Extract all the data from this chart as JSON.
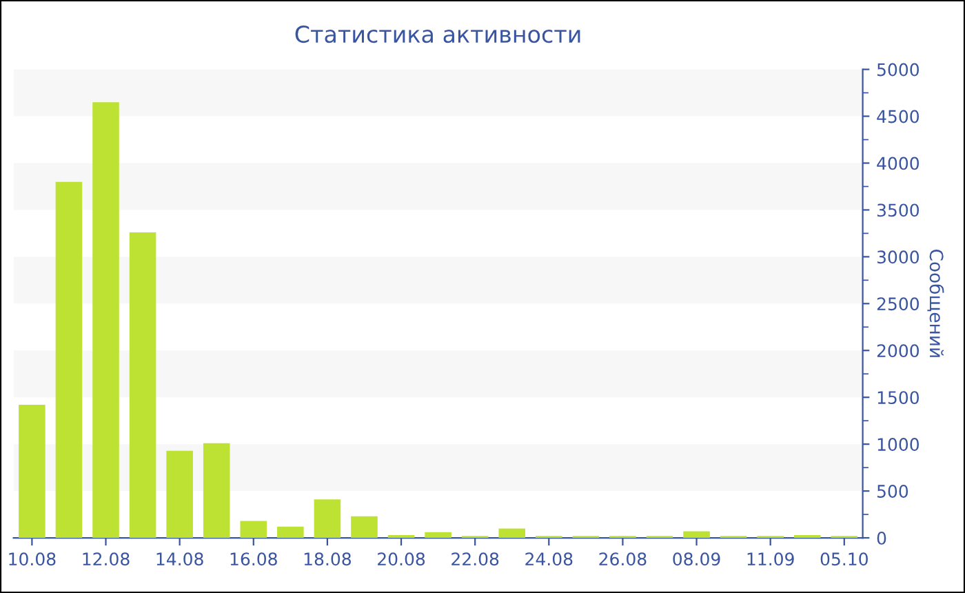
{
  "chart_data": {
    "type": "bar",
    "title": "Статистика активности",
    "ylabel": "Сообщений",
    "categories": [
      "10.08",
      null,
      "12.08",
      null,
      "14.08",
      null,
      "16.08",
      null,
      "18.08",
      null,
      "20.08",
      null,
      "22.08",
      null,
      "24.08",
      null,
      "26.08",
      null,
      "08.09",
      null,
      "11.09",
      null,
      "05.10"
    ],
    "values": [
      1420,
      3800,
      4650,
      3260,
      930,
      1010,
      180,
      120,
      410,
      230,
      30,
      60,
      20,
      100,
      20,
      20,
      20,
      20,
      70,
      20,
      20,
      30,
      20
    ],
    "color": "#bde233",
    "ylim": [
      0,
      5000
    ],
    "yticks": [
      0,
      500,
      1000,
      1500,
      2000,
      2500,
      3000,
      3500,
      4000,
      4500,
      5000
    ],
    "bands": [
      {
        "axis": "y",
        "from": 500,
        "to": 1000,
        "color": "#f7f7f7"
      },
      {
        "axis": "y",
        "from": 1500,
        "to": 2000,
        "color": "#f7f7f7"
      },
      {
        "axis": "y",
        "from": 2500,
        "to": 3000,
        "color": "#f7f7f7"
      },
      {
        "axis": "y",
        "from": 3500,
        "to": 4000,
        "color": "#f7f7f7"
      },
      {
        "axis": "y",
        "from": 4500,
        "to": 5000,
        "color": "#f7f7f7"
      }
    ],
    "grid": false,
    "legend": false
  }
}
